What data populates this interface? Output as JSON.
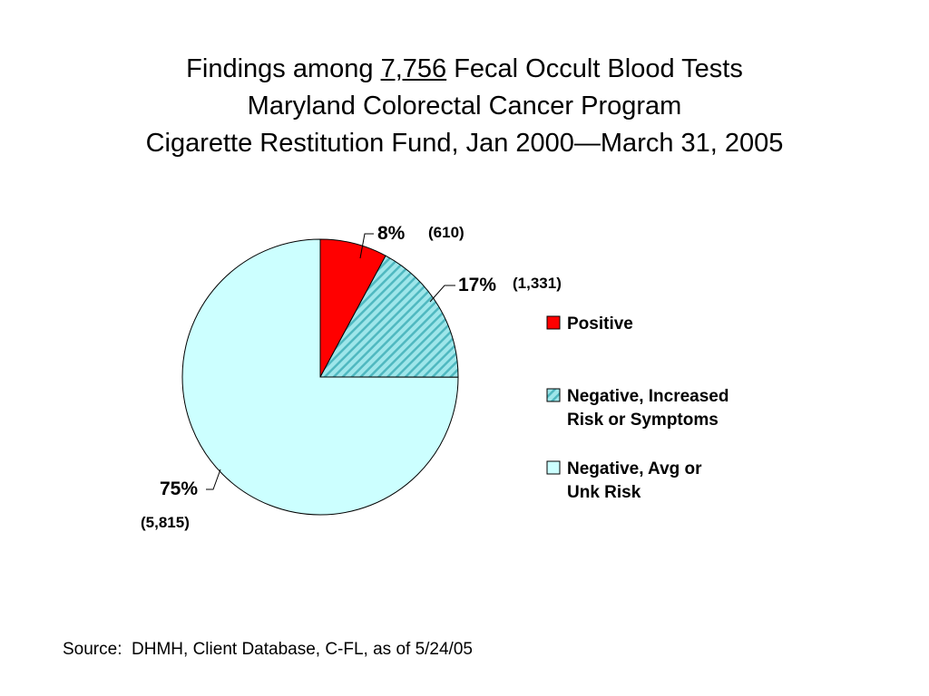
{
  "title": {
    "line1_prefix": "Findings among ",
    "line1_number": "7,756",
    "line1_suffix": " Fecal Occult Blood Tests",
    "line2": "Maryland Colorectal Cancer Program",
    "line3": "Cigarette Restitution Fund, Jan 2000—March 31, 2005"
  },
  "chart_data": {
    "type": "pie",
    "title": "Findings among 7,756 Fecal Occult Blood Tests Maryland Colorectal Cancer Program Cigarette Restitution Fund, Jan 2000—March 31, 2005",
    "start_angle_deg": 0,
    "direction": "clockwise",
    "legend_position": "right",
    "slices": [
      {
        "legend": [
          "Positive"
        ],
        "percent_label": "8%",
        "count_label": "(610)",
        "value": 610,
        "percent": 8,
        "color": "#ff0000",
        "pattern": "solid"
      },
      {
        "legend": [
          "Negative, Increased",
          "Risk or Symptoms"
        ],
        "percent_label": "17%",
        "count_label": "(1,331)",
        "value": 1331,
        "percent": 17,
        "color": "#9ee6ea",
        "pattern": "diagonal-hatch"
      },
      {
        "legend": [
          "Negative, Avg or",
          "Unk Risk"
        ],
        "percent_label": "75%",
        "count_label": "(5,815)",
        "value": 5815,
        "percent": 75,
        "color": "#ccffff",
        "pattern": "solid"
      }
    ]
  },
  "source": "Source:  DHMH, Client Database, C-FL, as of 5/24/05"
}
